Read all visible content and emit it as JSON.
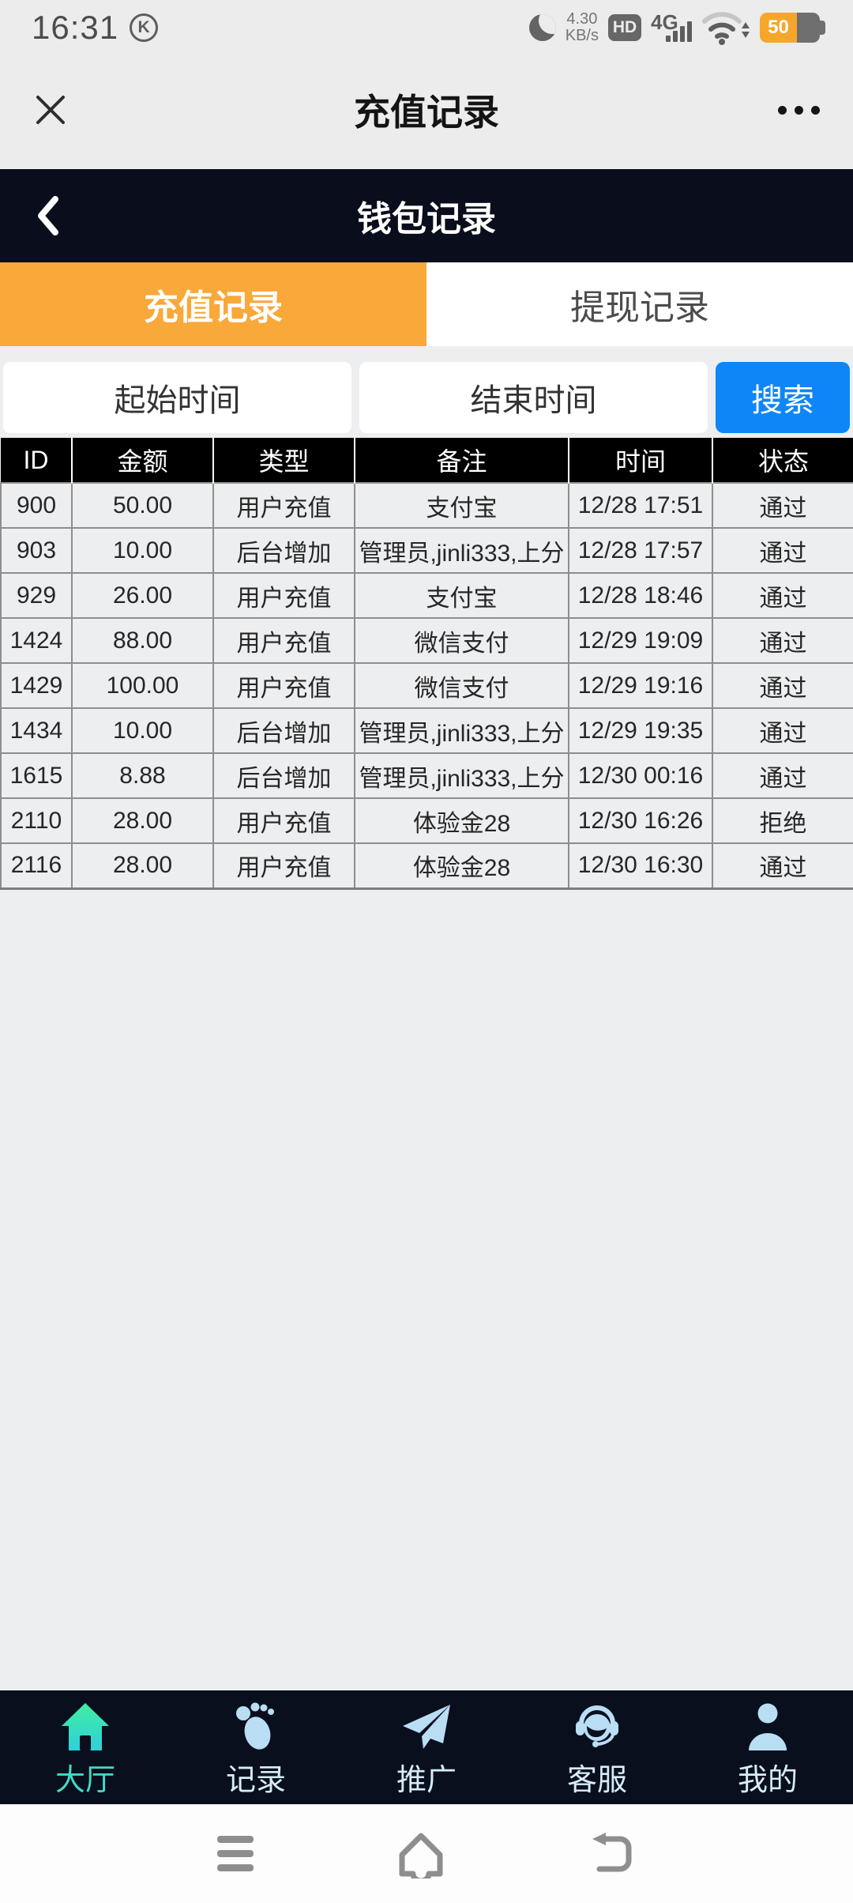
{
  "status_bar": {
    "time": "16:31",
    "k_badge": "K",
    "net_speed_value": "4.30",
    "net_speed_unit": "KB/s",
    "hd_label": "HD",
    "network": "4G",
    "battery_level": "50"
  },
  "webview_header": {
    "title": "充值记录"
  },
  "wallet_header": {
    "title": "钱包记录"
  },
  "tabs": [
    {
      "label": "充值记录",
      "active": true
    },
    {
      "label": "提现记录",
      "active": false
    }
  ],
  "filters": {
    "start_time_label": "起始时间",
    "end_time_label": "结束时间",
    "search_label": "搜索"
  },
  "table": {
    "columns": [
      "ID",
      "金额",
      "类型",
      "备注",
      "时间",
      "状态"
    ],
    "rows": [
      [
        "900",
        "50.00",
        "用户充值",
        "支付宝",
        "12/28 17:51",
        "通过"
      ],
      [
        "903",
        "10.00",
        "后台增加",
        "管理员,jinli333,上分",
        "12/28 17:57",
        "通过"
      ],
      [
        "929",
        "26.00",
        "用户充值",
        "支付宝",
        "12/28 18:46",
        "通过"
      ],
      [
        "1424",
        "88.00",
        "用户充值",
        "微信支付",
        "12/29 19:09",
        "通过"
      ],
      [
        "1429",
        "100.00",
        "用户充值",
        "微信支付",
        "12/29 19:16",
        "通过"
      ],
      [
        "1434",
        "10.00",
        "后台增加",
        "管理员,jinli333,上分",
        "12/29 19:35",
        "通过"
      ],
      [
        "1615",
        "8.88",
        "后台增加",
        "管理员,jinli333,上分",
        "12/30 00:16",
        "通过"
      ],
      [
        "2110",
        "28.00",
        "用户充值",
        "体验金28",
        "12/30 16:26",
        "拒绝"
      ],
      [
        "2116",
        "28.00",
        "用户充值",
        "体验金28",
        "12/30 16:30",
        "通过"
      ]
    ]
  },
  "bottom_nav": {
    "items": [
      {
        "label": "大厅",
        "icon": "home",
        "active": true
      },
      {
        "label": "记录",
        "icon": "footprints",
        "active": false
      },
      {
        "label": "推广",
        "icon": "paper-plane",
        "active": false
      },
      {
        "label": "客服",
        "icon": "headset",
        "active": false
      },
      {
        "label": "我的",
        "icon": "user",
        "active": false
      }
    ]
  },
  "colors": {
    "accent_orange": "#f9a83a",
    "accent_blue": "#0e86f7",
    "dark_navy": "#0a0d1b",
    "active_teal": "#43d9c5",
    "table_header_bg": "#000000"
  }
}
